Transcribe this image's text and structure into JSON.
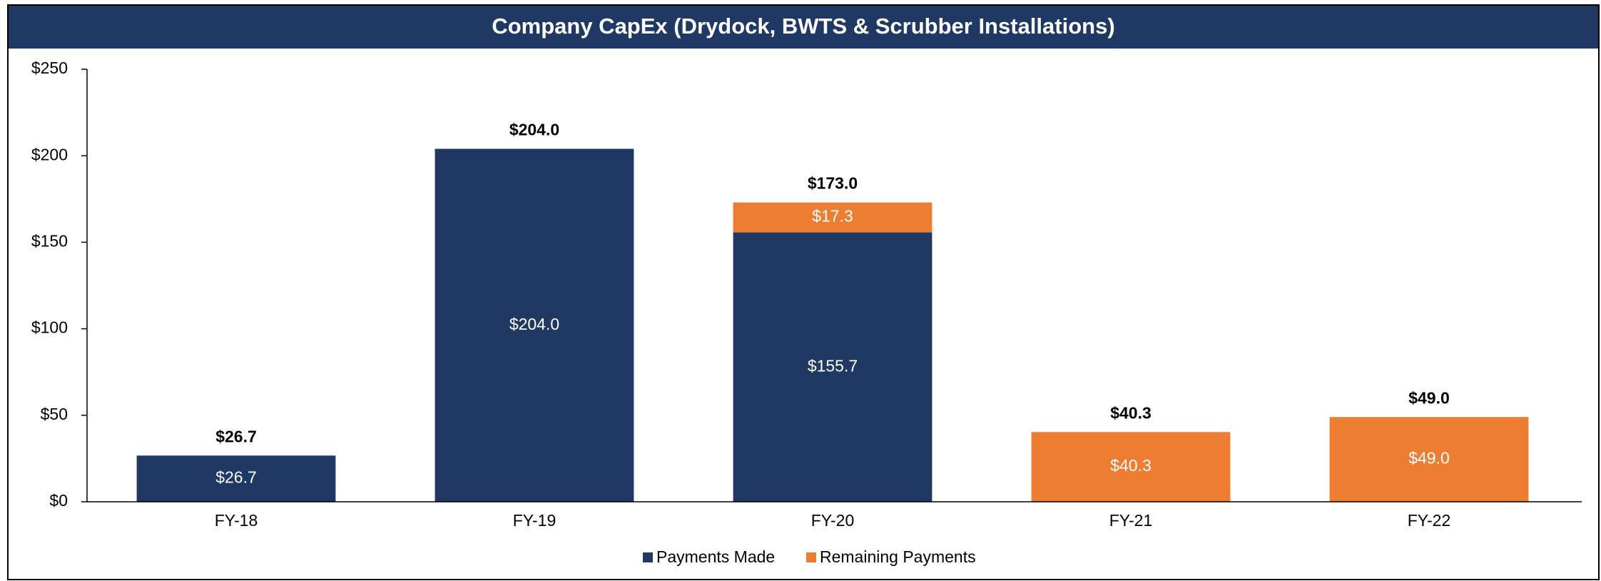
{
  "chart_data": {
    "type": "stacked_bar",
    "title": "Company CapEx (Drydock, BWTS & Scrubber Installations)",
    "categories": [
      "FY-18",
      "FY-19",
      "FY-20",
      "FY-21",
      "FY-22"
    ],
    "series": [
      {
        "name": "Payments Made",
        "color": "#1f3864",
        "values": [
          26.7,
          204.0,
          155.7,
          null,
          null
        ],
        "value_labels": [
          "$26.7",
          "$204.0",
          "$155.7",
          null,
          null
        ]
      },
      {
        "name": "Remaining Payments",
        "color": "#ed7d31",
        "values": [
          null,
          null,
          17.3,
          40.3,
          49.0
        ],
        "value_labels": [
          null,
          null,
          "$17.3",
          "$40.3",
          "$49.0"
        ]
      }
    ],
    "totals": [
      26.7,
      204.0,
      173.0,
      40.3,
      49.0
    ],
    "total_labels": [
      "$26.7",
      "$204.0",
      "$173.0",
      "$40.3",
      "$49.0"
    ],
    "ylim": [
      0,
      250
    ],
    "yticks": [
      {
        "value": 0,
        "label": "$0"
      },
      {
        "value": 50,
        "label": "$50"
      },
      {
        "value": 100,
        "label": "$100"
      },
      {
        "value": 150,
        "label": "$150"
      },
      {
        "value": 200,
        "label": "$200"
      },
      {
        "value": 250,
        "label": "$250"
      }
    ],
    "legend": "bottom"
  }
}
